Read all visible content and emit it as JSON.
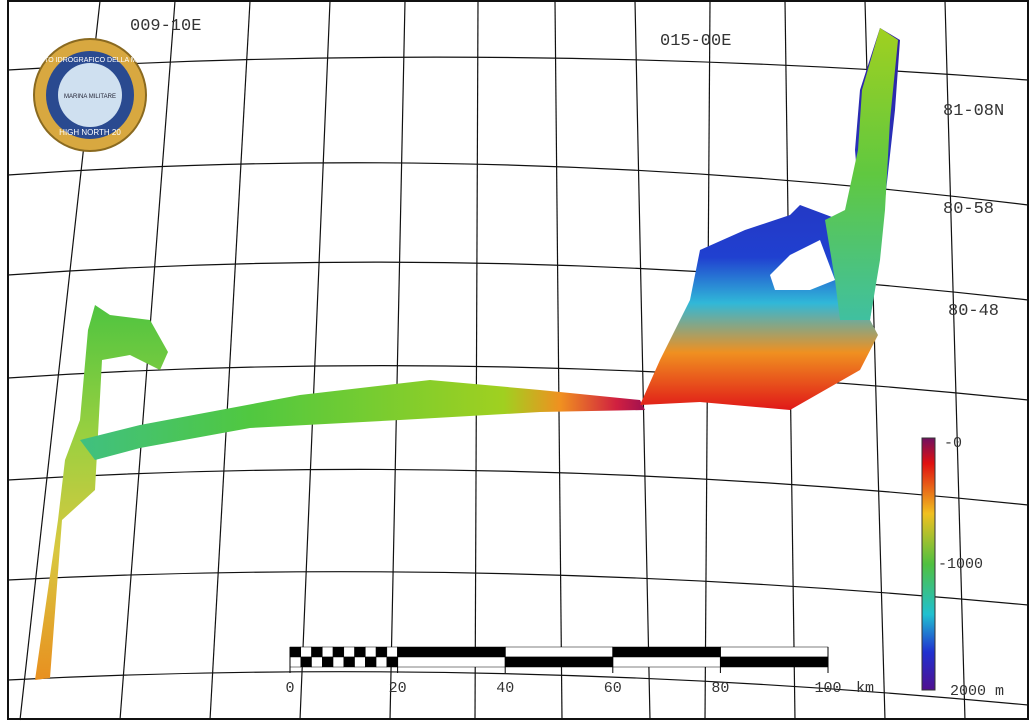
{
  "grid_labels": {
    "lon": [
      "009-10E",
      "015-00E"
    ],
    "lat": [
      "81-08N",
      "80-58",
      "80-48"
    ]
  },
  "logo": {
    "ring_top": "ISTITUTO IDROGRAFICO DELLA MARINA",
    "ring_bottom": "HIGH NORTH 20",
    "center": "MARINA MILITARE"
  },
  "scale_bar": {
    "ticks": [
      0,
      20,
      40,
      60,
      80,
      100
    ],
    "unit": "km"
  },
  "colorbar": {
    "labels": [
      "-0",
      "-1000",
      "2000 m"
    ]
  }
}
